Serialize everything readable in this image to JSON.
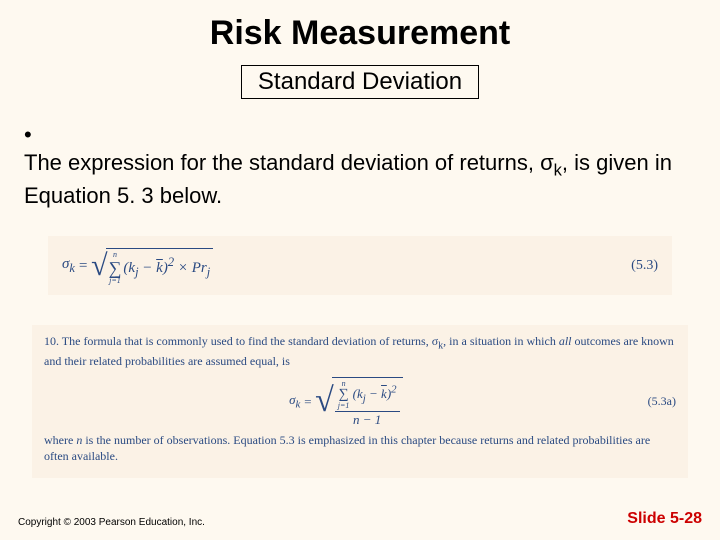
{
  "title": "Risk Measurement",
  "subtitle": "Standard Deviation",
  "bullet": {
    "pre": "The expression for the standard deviation of returns, σ",
    "sub": "k",
    "post": ", is given in Equation 5. 3 below."
  },
  "eq1": {
    "lhs_sym": "σ",
    "lhs_sub": "k",
    "eq": " = ",
    "sum_top": "n",
    "sum_bot": "j=1",
    "body1": "(k",
    "body1_sub": "j",
    "body2": " − ",
    "body2_bar": "k",
    "body3": ")",
    "body3_sup": "2",
    "body4": " × Pr",
    "body4_sub": "j",
    "num": "(5.3)"
  },
  "note": {
    "line1_pre": "10. The formula that is commonly used to find the standard deviation of returns, σ",
    "line1_sub": "k",
    "line1_mid": ", in a situation in which ",
    "line1_ital": "all",
    "line1_post": " outcomes are known and their related probabilities are assumed equal, is",
    "line2_pre": "where ",
    "line2_ital": "n",
    "line2_post": " is the number of observations. Equation 5.3 is emphasized in this chapter because returns and related probabilities are often available."
  },
  "eq2": {
    "lhs_sym": "σ",
    "lhs_sub": "k",
    "eq": " = ",
    "sum_top": "n",
    "sum_bot": "j=1",
    "body1": "(k",
    "body1_sub": "j",
    "body2": " − ",
    "body2_bar": "k",
    "body3": ")",
    "body3_sup": "2",
    "denom_a": "n",
    "denom_b": " − 1",
    "num": "(5.3a)"
  },
  "footer": {
    "copyright": "Copyright © 2003 Pearson Education, Inc.",
    "slide": "Slide 5-28"
  },
  "colors": {
    "bg": "#fef9f0",
    "region_bg": "#fbf2e6",
    "formula_text": "#2a4a82",
    "accent": "#cc0000"
  }
}
